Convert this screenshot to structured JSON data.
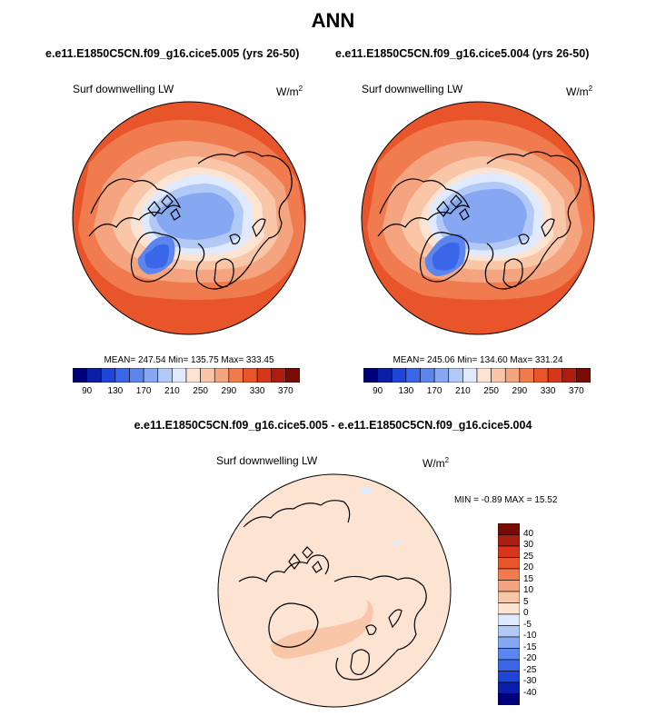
{
  "figure": {
    "title": "ANN",
    "run_a_title": "e.e11.E1850C5CN.f09_g16.cice5.005 (yrs 26-50)",
    "run_b_title": "e.e11.E1850C5CN.f09_g16.cice5.004 (yrs 26-50)",
    "diff_title": "e.e11.E1850C5CN.f09_g16.cice5.005 - e.e11.E1850C5CN.f09_g16.cice5.004"
  },
  "chart_data": [
    {
      "type": "heatmap",
      "projection": "north-polar-stereographic",
      "title": "e.e11.E1850C5CN.f09_g16.cice5.005 (yrs 26-50)",
      "variable": "Surf downwelling LW",
      "units": "W/m",
      "units_exp": "2",
      "stats": {
        "mean": 247.54,
        "min": 135.75,
        "max": 333.45
      },
      "stats_text": "MEAN= 247.54  Min= 135.75  Max= 333.45",
      "contour_levels": [
        90,
        110,
        130,
        150,
        170,
        190,
        210,
        230,
        250,
        270,
        290,
        310,
        330,
        350,
        370
      ],
      "colorbar_ticks": [
        "90",
        "130",
        "170",
        "210",
        "250",
        "290",
        "330",
        "370"
      ],
      "colorbar_colors": [
        "#00007a",
        "#0a1fa8",
        "#1f44d6",
        "#3a66e8",
        "#5c86ee",
        "#86a8f2",
        "#b2c9f6",
        "#dfeaff",
        "#fde4d2",
        "#f9c6a8",
        "#f4a47f",
        "#ef7b4f",
        "#e8552a",
        "#d8361a",
        "#ad1d10",
        "#7a0b05"
      ]
    },
    {
      "type": "heatmap",
      "projection": "north-polar-stereographic",
      "title": "e.e11.E1850C5CN.f09_g16.cice5.004 (yrs 26-50)",
      "variable": "Surf downwelling LW",
      "units": "W/m",
      "units_exp": "2",
      "stats": {
        "mean": 245.06,
        "min": 134.6,
        "max": 331.24
      },
      "stats_text": "MEAN= 245.06  Min= 134.60  Max= 331.24",
      "contour_levels": [
        90,
        110,
        130,
        150,
        170,
        190,
        210,
        230,
        250,
        270,
        290,
        310,
        330,
        350,
        370
      ],
      "colorbar_ticks": [
        "90",
        "130",
        "170",
        "210",
        "250",
        "290",
        "330",
        "370"
      ],
      "colorbar_colors": [
        "#00007a",
        "#0a1fa8",
        "#1f44d6",
        "#3a66e8",
        "#5c86ee",
        "#86a8f2",
        "#b2c9f6",
        "#dfeaff",
        "#fde4d2",
        "#f9c6a8",
        "#f4a47f",
        "#ef7b4f",
        "#e8552a",
        "#d8361a",
        "#ad1d10",
        "#7a0b05"
      ]
    },
    {
      "type": "heatmap",
      "projection": "north-polar-stereographic",
      "title": "e.e11.E1850C5CN.f09_g16.cice5.005 - e.e11.E1850C5CN.f09_g16.cice5.004",
      "variable": "Surf downwelling LW",
      "units": "W/m",
      "units_exp": "2",
      "stats": {
        "min": -0.89,
        "max": 15.52
      },
      "stats_text": "MIN =  -0.89 MAX =  15.52",
      "contour_levels": [
        -40,
        -30,
        -25,
        -20,
        -15,
        -10,
        -5,
        0,
        5,
        10,
        15,
        20,
        25,
        30,
        40
      ],
      "colorbar_ticks": [
        "40",
        "30",
        "25",
        "20",
        "15",
        "10",
        "5",
        "0",
        "-5",
        "-10",
        "-15",
        "-20",
        "-25",
        "-30",
        "-40"
      ],
      "colorbar_colors": [
        "#7a0b05",
        "#ad1d10",
        "#d8361a",
        "#e8552a",
        "#ef7b4f",
        "#f4a47f",
        "#f9c6a8",
        "#fde4d2",
        "#dfeaff",
        "#b2c9f6",
        "#86a8f2",
        "#5c86ee",
        "#3a66e8",
        "#1f44d6",
        "#0a1fa8",
        "#00007a"
      ]
    }
  ],
  "colors": {
    "ocean_warm": "#e8552a",
    "ocean_mid": "#f4a47f",
    "ocean_light": "#f9c6a8",
    "pale": "#fde4d2",
    "ice_light": "#dfeaff",
    "ice_mid": "#b2c9f6",
    "ice_blue": "#86a8f2",
    "ice_deep": "#3a66e8",
    "diff_bg": "#fde4d2",
    "diff_warm": "#f9c6a8",
    "coast": "#000000"
  }
}
